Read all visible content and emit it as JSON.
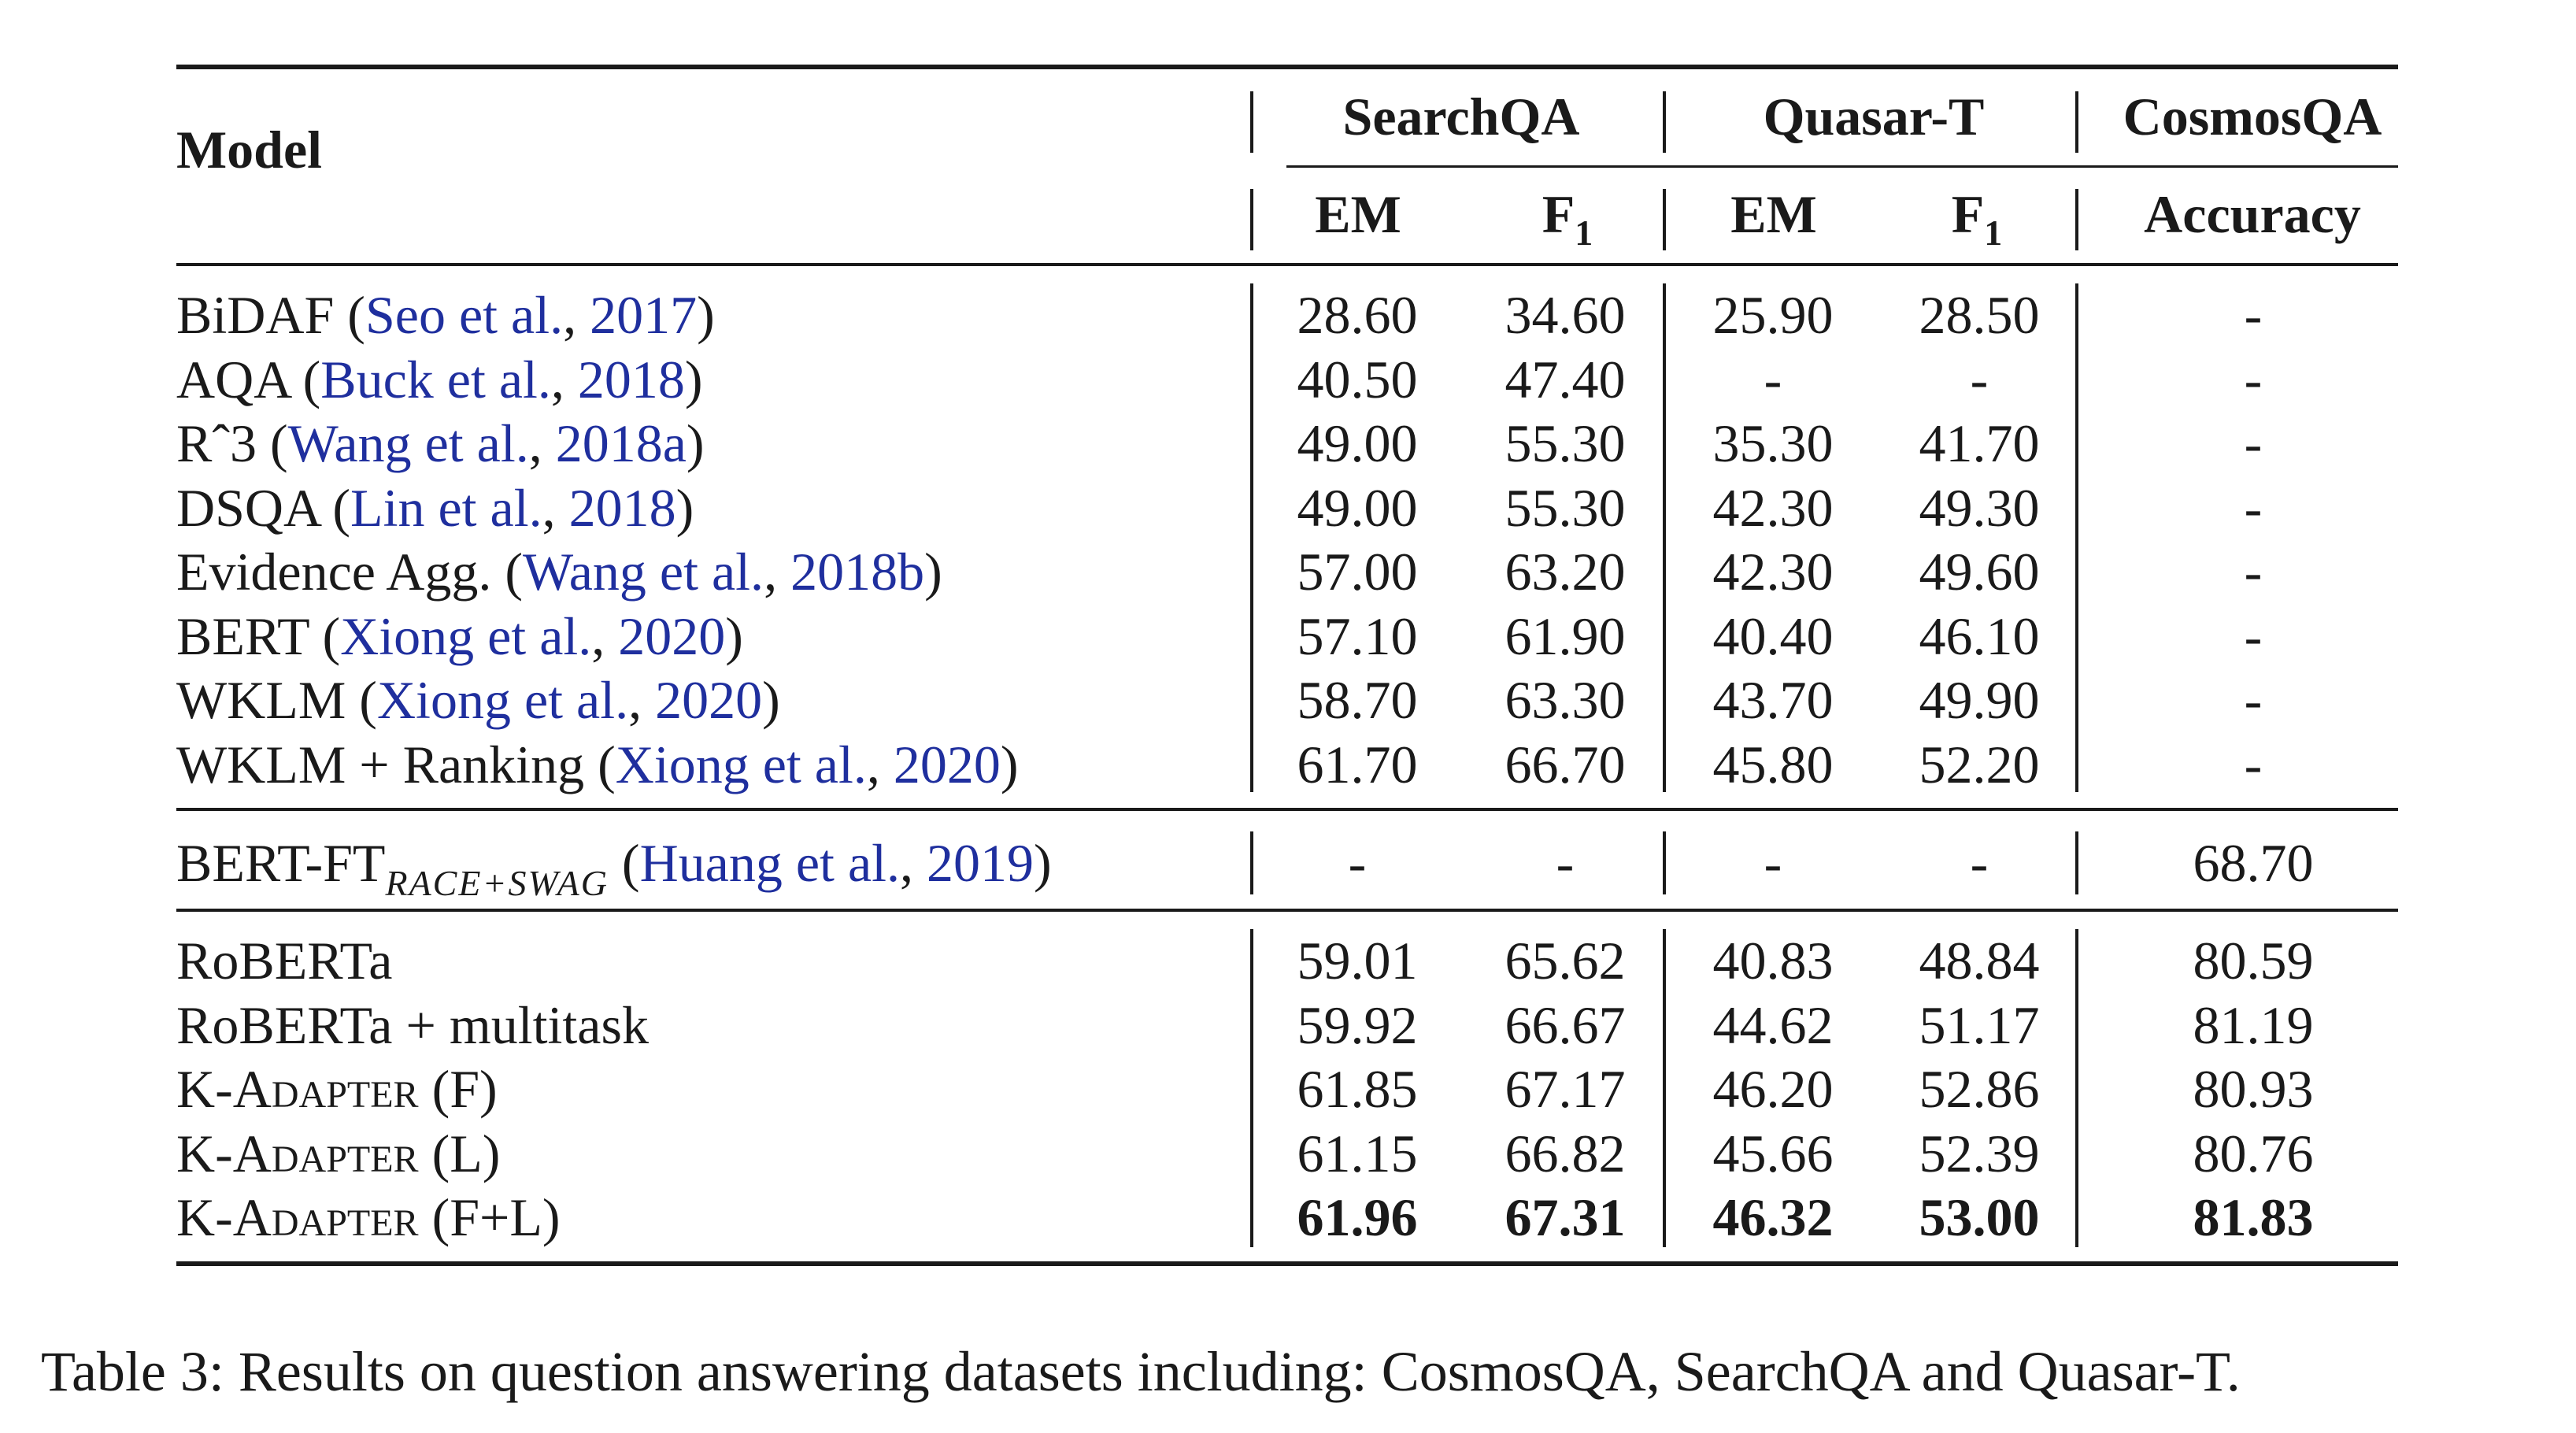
{
  "header": {
    "model": "Model",
    "groups": [
      "SearchQA",
      "Quasar-T",
      "CosmosQA"
    ],
    "sub": [
      "EM",
      "F",
      "EM",
      "F",
      "Accuracy"
    ],
    "f_subscript": "1"
  },
  "groups": [
    [
      {
        "pre": "BiDAF (",
        "cite": "Seo et al.",
        "mid": ", ",
        "year": "2017",
        "post": ")",
        "cells": [
          "28.60",
          "34.60",
          "25.90",
          "28.50",
          "-"
        ]
      },
      {
        "pre": "AQA (",
        "cite": "Buck et al.",
        "mid": ", ",
        "year": "2018",
        "post": ")",
        "cells": [
          "40.50",
          "47.40",
          "-",
          "-",
          "-"
        ]
      },
      {
        "pre": "Rˆ3 (",
        "cite": "Wang et al.",
        "mid": ", ",
        "year": "2018a",
        "post": ")",
        "cells": [
          "49.00",
          "55.30",
          "35.30",
          "41.70",
          "-"
        ]
      },
      {
        "pre": "DSQA (",
        "cite": "Lin et al.",
        "mid": ", ",
        "year": "2018",
        "post": ")",
        "cells": [
          "49.00",
          "55.30",
          "42.30",
          "49.30",
          "-"
        ]
      },
      {
        "pre": "Evidence Agg. (",
        "cite": "Wang et al.",
        "mid": ", ",
        "year": "2018b",
        "post": ")",
        "cells": [
          "57.00",
          "63.20",
          "42.30",
          "49.60",
          "-"
        ]
      },
      {
        "pre": "BERT (",
        "cite": "Xiong et al.",
        "mid": ", ",
        "year": "2020",
        "post": ")",
        "cells": [
          "57.10",
          "61.90",
          "40.40",
          "46.10",
          "-"
        ]
      },
      {
        "pre": "WKLM (",
        "cite": "Xiong et al.",
        "mid": ", ",
        "year": "2020",
        "post": ")",
        "cells": [
          "58.70",
          "63.30",
          "43.70",
          "49.90",
          "-"
        ]
      },
      {
        "pre": "WKLM + Ranking (",
        "cite": "Xiong et al.",
        "mid": ", ",
        "year": "2020",
        "post": ")",
        "cells": [
          "61.70",
          "66.70",
          "45.80",
          "52.20",
          "-"
        ]
      }
    ],
    [
      {
        "pre": "BERT-FT",
        "sub": "RACE+SWAG",
        "pre2": " (",
        "cite": "Huang et al.",
        "mid": ", ",
        "year": "2019",
        "post": ")",
        "cells": [
          "-",
          "-",
          "-",
          "-",
          "68.70"
        ]
      }
    ],
    [
      {
        "pre": "RoBERTa",
        "cells": [
          "59.01",
          "65.62",
          "40.83",
          "48.84",
          "80.59"
        ]
      },
      {
        "pre": "RoBERTa + multitask",
        "cells": [
          "59.92",
          "66.67",
          "44.62",
          "51.17",
          "81.19"
        ]
      },
      {
        "pre": "K-",
        "sc": "Adapter",
        "post": " (F)",
        "cells": [
          "61.85",
          "67.17",
          "46.20",
          "52.86",
          "80.93"
        ]
      },
      {
        "pre": "K-",
        "sc": "Adapter",
        "post": " (L)",
        "cells": [
          "61.15",
          "66.82",
          "45.66",
          "52.39",
          "80.76"
        ]
      },
      {
        "pre": "K-",
        "sc": "Adapter",
        "post": " (F+L)",
        "cells": [
          "61.96",
          "67.31",
          "46.32",
          "53.00",
          "81.83"
        ],
        "bold": true
      }
    ]
  ],
  "caption": "Table 3: Results on question answering datasets including: CosmosQA, SearchQA and Quasar-T."
}
